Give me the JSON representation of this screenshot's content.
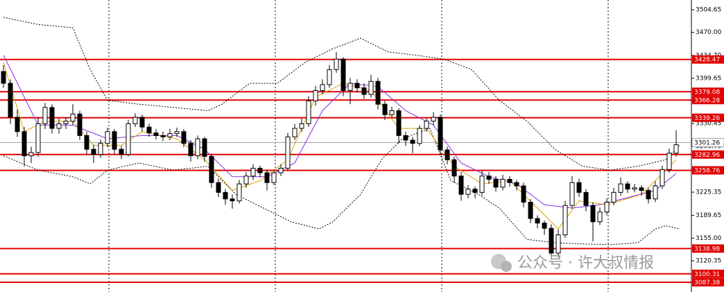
{
  "chart_data": {
    "type": "candlestick",
    "ylim": [
      3072.5,
      3519.5
    ],
    "xlim": [
      -0.5,
      99.2
    ],
    "yticks": [
      3504.65,
      {
        "value": 3470,
        "label": "3470.00"
      },
      {
        "value": 3434.7,
        "label": "3434.70"
      },
      3399.65,
      {
        "value": 3365,
        "label": "3365.00"
      },
      3330.45,
      {
        "value": 3295.7,
        "label": "3295.70"
      },
      3260.65,
      3225.35,
      3189.65,
      {
        "value": 3155,
        "label": "3155.00"
      },
      3120.35
    ],
    "up_color": "#ffffff",
    "down_color": "#000000",
    "candles": [
      [
        3410,
        3420,
        3385,
        3392
      ],
      [
        3392,
        3398,
        3330,
        3340
      ],
      [
        3340,
        3352,
        3310,
        3318
      ],
      [
        3318,
        3325,
        3265,
        3281
      ],
      [
        3281,
        3295,
        3270,
        3286
      ],
      [
        3286,
        3340,
        3280,
        3330
      ],
      [
        3330,
        3362,
        3322,
        3355
      ],
      [
        3355,
        3360,
        3315,
        3323
      ],
      [
        3323,
        3338,
        3315,
        3330
      ],
      [
        3330,
        3340,
        3322,
        3334
      ],
      [
        3334,
        3360,
        3328,
        3345
      ],
      [
        3345,
        3350,
        3305,
        3312
      ],
      [
        3312,
        3318,
        3283,
        3291
      ],
      [
        3291,
        3298,
        3270,
        3283
      ],
      [
        3283,
        3306,
        3278,
        3300
      ],
      [
        3300,
        3324,
        3294,
        3318
      ],
      [
        3318,
        3322,
        3284,
        3291
      ],
      [
        3291,
        3296,
        3276,
        3283
      ],
      [
        3283,
        3336,
        3280,
        3330
      ],
      [
        3330,
        3346,
        3325,
        3340
      ],
      [
        3340,
        3344,
        3318,
        3325
      ],
      [
        3325,
        3330,
        3310,
        3316
      ],
      [
        3316,
        3322,
        3306,
        3312
      ],
      [
        3312,
        3318,
        3304,
        3310
      ],
      [
        3310,
        3322,
        3305,
        3315
      ],
      [
        3315,
        3324,
        3310,
        3318
      ],
      [
        3318,
        3322,
        3294,
        3300
      ],
      [
        3300,
        3305,
        3272,
        3281
      ],
      [
        3281,
        3312,
        3276,
        3307
      ],
      [
        3307,
        3310,
        3272,
        3280
      ],
      [
        3280,
        3284,
        3232,
        3240
      ],
      [
        3240,
        3246,
        3218,
        3225
      ],
      [
        3225,
        3230,
        3206,
        3215
      ],
      [
        3215,
        3222,
        3200,
        3212
      ],
      [
        3212,
        3244,
        3208,
        3238
      ],
      [
        3238,
        3256,
        3232,
        3250
      ],
      [
        3250,
        3268,
        3244,
        3262
      ],
      [
        3262,
        3266,
        3248,
        3255
      ],
      [
        3255,
        3260,
        3228,
        3240
      ],
      [
        3240,
        3260,
        3236,
        3255
      ],
      [
        3255,
        3268,
        3250,
        3262
      ],
      [
        3262,
        3316,
        3258,
        3310
      ],
      [
        3310,
        3330,
        3305,
        3323
      ],
      [
        3323,
        3338,
        3318,
        3330
      ],
      [
        3330,
        3372,
        3325,
        3365
      ],
      [
        3365,
        3388,
        3358,
        3381
      ],
      [
        3381,
        3398,
        3375,
        3390
      ],
      [
        3390,
        3420,
        3385,
        3413
      ],
      [
        3413,
        3440,
        3408,
        3429
      ],
      [
        3429,
        3432,
        3372,
        3381
      ],
      [
        3381,
        3400,
        3360,
        3392
      ],
      [
        3392,
        3398,
        3378,
        3385
      ],
      [
        3385,
        3392,
        3368,
        3375
      ],
      [
        3375,
        3405,
        3370,
        3395
      ],
      [
        3395,
        3400,
        3352,
        3360
      ],
      [
        3360,
        3365,
        3336,
        3344
      ],
      [
        3344,
        3356,
        3338,
        3350
      ],
      [
        3350,
        3354,
        3300,
        3312
      ],
      [
        3312,
        3318,
        3296,
        3305
      ],
      [
        3305,
        3310,
        3285,
        3300
      ],
      [
        3300,
        3328,
        3296,
        3323
      ],
      [
        3323,
        3338,
        3318,
        3334
      ],
      [
        3334,
        3348,
        3328,
        3340
      ],
      [
        3340,
        3344,
        3282,
        3290
      ],
      [
        3290,
        3295,
        3268,
        3275
      ],
      [
        3275,
        3280,
        3240,
        3250
      ],
      [
        3250,
        3256,
        3212,
        3222
      ],
      [
        3222,
        3236,
        3216,
        3230
      ],
      [
        3230,
        3234,
        3216,
        3225
      ],
      [
        3225,
        3258,
        3220,
        3250
      ],
      [
        3250,
        3256,
        3238,
        3245
      ],
      [
        3245,
        3250,
        3226,
        3233
      ],
      [
        3233,
        3252,
        3228,
        3245
      ],
      [
        3245,
        3250,
        3234,
        3240
      ],
      [
        3240,
        3244,
        3228,
        3235
      ],
      [
        3235,
        3240,
        3202,
        3210
      ],
      [
        3210,
        3215,
        3178,
        3185
      ],
      [
        3185,
        3190,
        3170,
        3178
      ],
      [
        3178,
        3182,
        3160,
        3170
      ],
      [
        3170,
        3176,
        3122,
        3132
      ],
      [
        3132,
        3168,
        3126,
        3160
      ],
      [
        3160,
        3212,
        3155,
        3205
      ],
      [
        3205,
        3250,
        3200,
        3240
      ],
      [
        3240,
        3246,
        3218,
        3225
      ],
      [
        3225,
        3230,
        3196,
        3205
      ],
      [
        3205,
        3210,
        3150,
        3180
      ],
      [
        3180,
        3202,
        3175,
        3195
      ],
      [
        3195,
        3216,
        3190,
        3210
      ],
      [
        3210,
        3232,
        3205,
        3225
      ],
      [
        3225,
        3248,
        3220,
        3238
      ],
      [
        3238,
        3242,
        3224,
        3230
      ],
      [
        3230,
        3238,
        3225,
        3232
      ],
      [
        3232,
        3236,
        3220,
        3228
      ],
      [
        3228,
        3232,
        3208,
        3215
      ],
      [
        3215,
        3242,
        3210,
        3235
      ],
      [
        3235,
        3266,
        3230,
        3260
      ],
      [
        3260,
        3292,
        3255,
        3285
      ],
      [
        3285,
        3320,
        3280,
        3298
      ]
    ],
    "lines": [
      {
        "color": "#000000",
        "dash": true,
        "x": [
          0,
          5,
          10,
          12.5,
          15,
          19.5,
          24.5,
          29.5,
          31.5,
          35.5,
          39.5,
          43.5,
          47.5,
          51.5,
          55.5,
          59.5,
          63.5,
          67.5,
          71.5,
          75.5,
          79.5,
          83.5,
          87.5,
          91.5,
          95.5,
          97.5
        ],
        "values": [
          3493,
          3482,
          3477,
          3413,
          3366,
          3360,
          3355,
          3350,
          3360,
          3392,
          3392,
          3424,
          3445,
          3461,
          3440,
          3435,
          3429,
          3413,
          3366,
          3334,
          3291,
          3265,
          3259,
          3265,
          3275,
          3297
        ]
      },
      {
        "color": "#000000",
        "dash": true,
        "x": [
          0,
          5,
          10,
          12.5,
          15,
          19.5,
          24.5,
          29.5,
          33.5,
          37.5,
          41.5,
          45.5,
          47.5,
          51.5,
          54.5,
          57.5,
          61.5,
          64.5,
          68.5,
          71.5,
          75.5,
          79.5,
          83.5,
          87.5,
          91.5,
          94,
          95.5,
          97.5
        ],
        "values": [
          3281,
          3259,
          3249,
          3238,
          3259,
          3270,
          3259,
          3265,
          3222,
          3201,
          3180,
          3169,
          3180,
          3222,
          3275,
          3307,
          3323,
          3243,
          3222,
          3201,
          3153,
          3148,
          3146,
          3145,
          3148,
          3169,
          3174,
          3169
        ]
      },
      {
        "color": "#8a2be2",
        "dash": false,
        "x": [
          0,
          5,
          10,
          15,
          20,
          25,
          29,
          33,
          38,
          42,
          46,
          50,
          54,
          58,
          62,
          66,
          70,
          74,
          78,
          82,
          86,
          90,
          94,
          97
        ],
        "values": [
          3435,
          3328,
          3328,
          3307,
          3312,
          3312,
          3291,
          3249,
          3249,
          3270,
          3350,
          3392,
          3387,
          3350,
          3328,
          3270,
          3249,
          3238,
          3206,
          3201,
          3206,
          3217,
          3228,
          3254
        ]
      },
      {
        "color": "#e0a000",
        "dash": false,
        "x": [
          0,
          3,
          6,
          10,
          13,
          17,
          20,
          25,
          29,
          33,
          37,
          41,
          45,
          49,
          53,
          57,
          61,
          65,
          69,
          73,
          77,
          80,
          83,
          87,
          92,
          97
        ],
        "values": [
          3424,
          3318,
          3334,
          3334,
          3297,
          3297,
          3318,
          3307,
          3275,
          3228,
          3243,
          3275,
          3371,
          3392,
          3381,
          3323,
          3323,
          3265,
          3238,
          3243,
          3201,
          3169,
          3212,
          3206,
          3222,
          3275
        ]
      }
    ],
    "levels": [
      3428.47,
      3379.08,
      3366.28,
      3339.26,
      3282.96,
      3258.76,
      3138.98,
      3100.31,
      3087.38
    ],
    "level_color": "#e00000",
    "current_price": 3301.26,
    "watermark": "公众号 · 许大叔情报"
  }
}
